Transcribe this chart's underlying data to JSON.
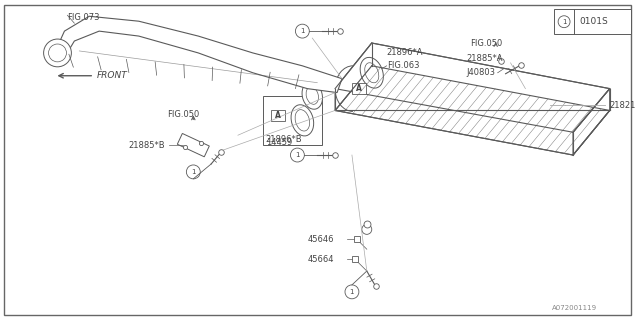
{
  "bg_color": "#ffffff",
  "line_color": "#5a5a5a",
  "text_color": "#444444",
  "title_text": "0101S",
  "watermark": "A072001119",
  "front_label": "FRONT"
}
